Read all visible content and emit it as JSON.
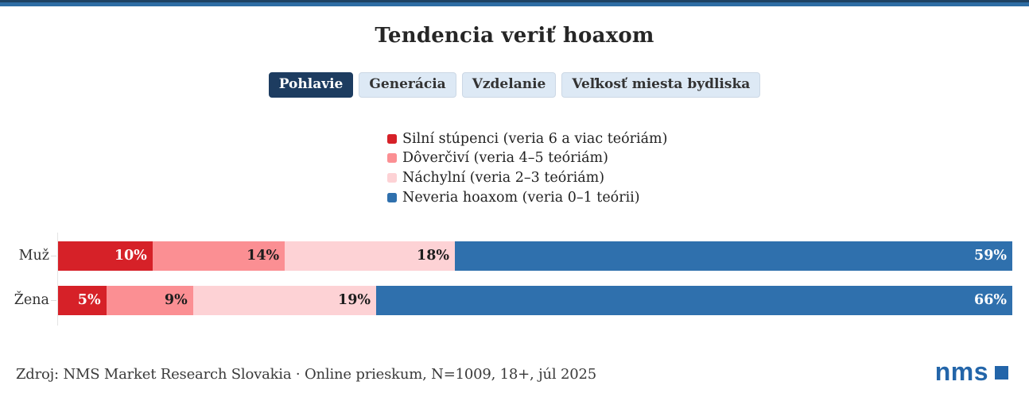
{
  "header": {
    "title": "Tendencia veriť hoaxom"
  },
  "tabs": [
    {
      "label": "Pohlavie",
      "active": true
    },
    {
      "label": "Generácia",
      "active": false
    },
    {
      "label": "Vzdelanie",
      "active": false
    },
    {
      "label": "Veľkosť miesta bydliska",
      "active": false
    }
  ],
  "legend": [
    {
      "label": "Silní stúpenci (veria 6 a viac teóriám)",
      "color": "#d62128"
    },
    {
      "label": "Dôverčiví (veria 4–5 teóriám)",
      "color": "#fb8f93"
    },
    {
      "label": "Náchylní (veria 2–3 teóriám)",
      "color": "#fdd2d5"
    },
    {
      "label": "Neveria hoaxom (veria 0–1 teórii)",
      "color": "#2f70ad"
    }
  ],
  "chart_data": {
    "type": "bar",
    "orientation": "horizontal",
    "stacked": true,
    "title": "Tendencia veriť hoaxom",
    "categories": [
      "Muž",
      "Žena"
    ],
    "series": [
      {
        "name": "Silní stúpenci (veria 6 a viac teóriám)",
        "color": "#d62128",
        "label_color": "#ffffff",
        "values": [
          10,
          5
        ]
      },
      {
        "name": "Dôverčiví (veria 4–5 teóriám)",
        "color": "#fb8f93",
        "label_color": "#1d1d1d",
        "values": [
          14,
          9
        ]
      },
      {
        "name": "Náchylní (veria 2–3 teóriám)",
        "color": "#fdd2d5",
        "label_color": "#1d1d1d",
        "values": [
          18,
          19
        ]
      },
      {
        "name": "Neveria hoaxom (veria 0–1 teórii)",
        "color": "#2f70ad",
        "label_color": "#ffffff",
        "values": [
          59,
          66
        ]
      }
    ],
    "value_suffix": "%",
    "xlim": [
      0,
      100
    ],
    "legend_position": "top-center",
    "grid": false
  },
  "footer": {
    "source": "Zdroj: NMS Market Research Slovakia · Online prieskum, N=1009, 18+, júl 2025",
    "logo_text": "nms",
    "logo_color": "#2365a9"
  },
  "colors": {
    "topbar_dark": "#1e4263",
    "topbar_blue": "#2e6da4",
    "tab_active_bg": "#1d3c60",
    "tab_inactive_bg": "#dde9f5"
  }
}
